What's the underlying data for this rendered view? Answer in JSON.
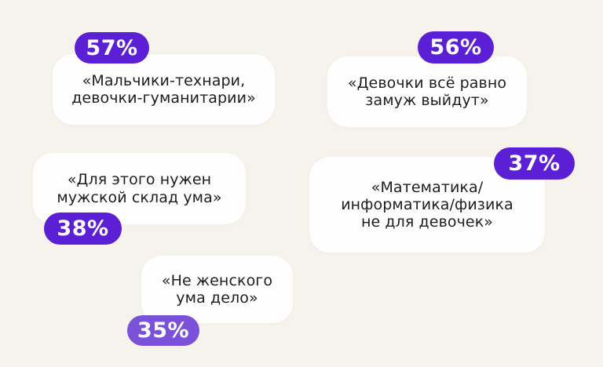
{
  "page": {
    "background_color": "#f6f3ed",
    "card_color": "#fefefe",
    "text_color": "#1e1e20",
    "badge_color_primary": "#5b1fd6",
    "badge_color_secondary": "#7c51da"
  },
  "stats": [
    {
      "percent": "57%",
      "quote": "«Мальчики-технари,\nдевочки-гуманитарии»"
    },
    {
      "percent": "56%",
      "quote": "«Девочки всё равно\nзамуж выйдут»"
    },
    {
      "percent": "38%",
      "quote": "«Для этого нужен\nмужской склад ума»"
    },
    {
      "percent": "37%",
      "quote": "«Математика/\nинформатика/физика\nне для девочек»"
    },
    {
      "percent": "35%",
      "quote": "«Не женского\nума дело»"
    }
  ],
  "chart_data": {
    "type": "table",
    "title": "",
    "categories": [
      "«Мальчики-технари, девочки-гуманитарии»",
      "«Девочки всё равно замуж выйдут»",
      "«Для этого нужен мужской склад ума»",
      "«Математика/информатика/физика не для девочек»",
      "«Не женского ума дело»"
    ],
    "values": [
      57,
      56,
      38,
      37,
      35
    ],
    "unit": "%",
    "legend_position": "none",
    "notes": "Infographic of agreement percentages with gender-stereotype statements; each value shown as a violet pill badge attached to a white quote card"
  }
}
